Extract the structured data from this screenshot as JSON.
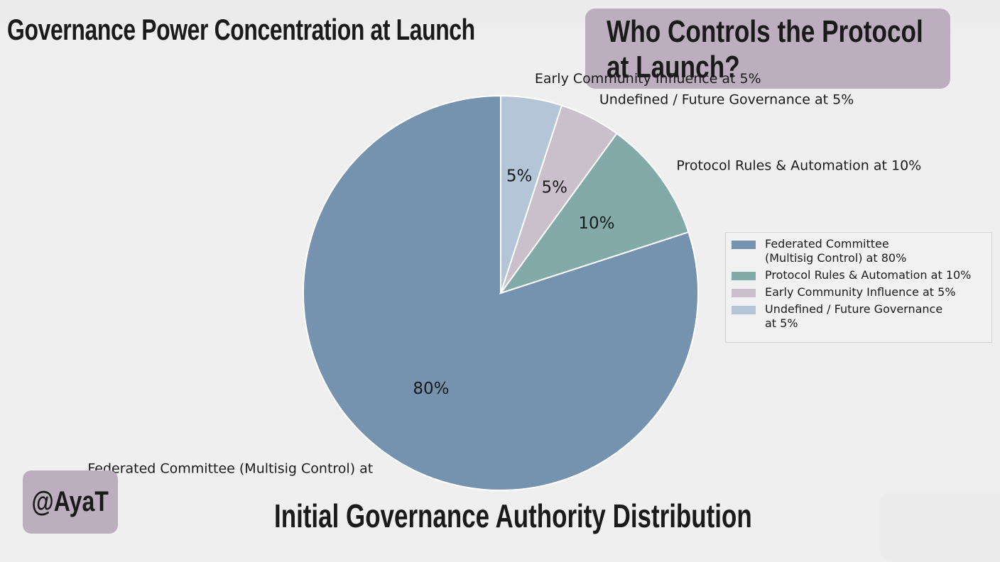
{
  "header": {
    "title": "Governance Power Concentration at Launch"
  },
  "callout": {
    "text": "Who Controls the Protocol\nat Launch?"
  },
  "footer": {
    "handle": "@AyaT",
    "subtitle": "Initial Governance Authority Distribution"
  },
  "chart_data": {
    "type": "pie",
    "title": "Initial Governance Authority Distribution",
    "legend_position": "right",
    "start_angle": 90,
    "direction": "counterclockwise",
    "slices": [
      {
        "label": "Federated Committee (Multisig Control) at",
        "legend_label": "Federated Committee\n(Multisig Control) at 80%",
        "value": 80,
        "pct_label": "80%",
        "color": "#7592ae"
      },
      {
        "label": "Protocol Rules & Automation at 10%",
        "legend_label": "Protocol Rules & Automation at 10%",
        "value": 10,
        "pct_label": "10%",
        "color": "#81aaa9"
      },
      {
        "label": "Undefined / Future Governance at 5%",
        "legend_label": "Early Community Influence at 5%",
        "value": 5,
        "pct_label": "5%",
        "color": "#c9c0cb"
      },
      {
        "label": "Early Community Influence at 5%",
        "legend_label": "Undefined / Future Governance\nat 5%",
        "value": 5,
        "pct_label": "5%",
        "color": "#b3c5d6"
      }
    ]
  }
}
